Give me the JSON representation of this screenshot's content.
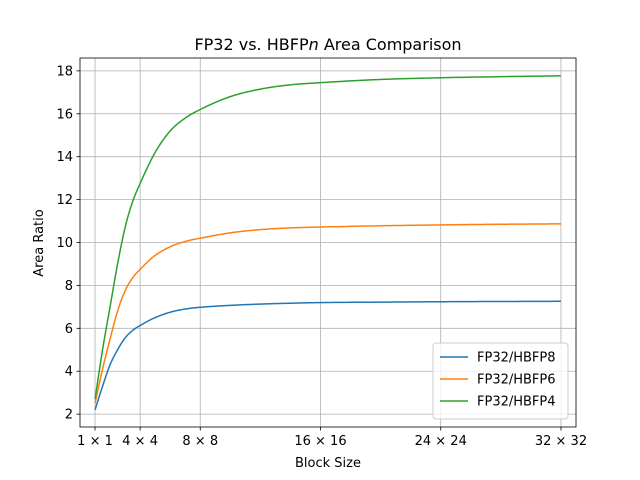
{
  "chart_data": {
    "type": "line",
    "title": "FP32 vs. HBFP",
    "title_italic": "n",
    "title_suffix": " Area Comparison",
    "xlabel": "Block Size",
    "ylabel": "Area Ratio",
    "xlim": [
      0,
      33
    ],
    "ylim": [
      1.4,
      18.6
    ],
    "grid": true,
    "legend_position": "lower-right",
    "x_ticks": [
      {
        "value": 1,
        "label": "1 × 1"
      },
      {
        "value": 4,
        "label": "4 × 4"
      },
      {
        "value": 8,
        "label": "8 × 8"
      },
      {
        "value": 16,
        "label": "16 × 16"
      },
      {
        "value": 24,
        "label": "24 × 24"
      },
      {
        "value": 32,
        "label": "32 × 32"
      }
    ],
    "y_ticks": [
      2,
      4,
      6,
      8,
      10,
      12,
      14,
      16,
      18
    ],
    "x": [
      1,
      1.5,
      2,
      2.5,
      3,
      3.5,
      4,
      5,
      6,
      7,
      8,
      10,
      12,
      14,
      16,
      20,
      24,
      28,
      32
    ],
    "series": [
      {
        "name": "FP32/HBFP8",
        "color": "#1f77b4",
        "values": [
          2.2,
          3.3,
          4.3,
          5.0,
          5.55,
          5.9,
          6.13,
          6.5,
          6.75,
          6.9,
          6.98,
          7.07,
          7.13,
          7.17,
          7.2,
          7.22,
          7.24,
          7.25,
          7.26
        ]
      },
      {
        "name": "FP32/HBFP6",
        "color": "#ff7f0e",
        "values": [
          2.5,
          4.1,
          5.5,
          6.8,
          7.75,
          8.35,
          8.75,
          9.4,
          9.8,
          10.05,
          10.2,
          10.45,
          10.6,
          10.68,
          10.72,
          10.78,
          10.82,
          10.85,
          10.87
        ]
      },
      {
        "name": "FP32/HBFP4",
        "color": "#2ca02c",
        "values": [
          2.7,
          5.0,
          7.0,
          9.0,
          10.7,
          11.9,
          12.75,
          14.2,
          15.2,
          15.8,
          16.2,
          16.8,
          17.15,
          17.35,
          17.45,
          17.6,
          17.68,
          17.73,
          17.77
        ]
      }
    ]
  }
}
